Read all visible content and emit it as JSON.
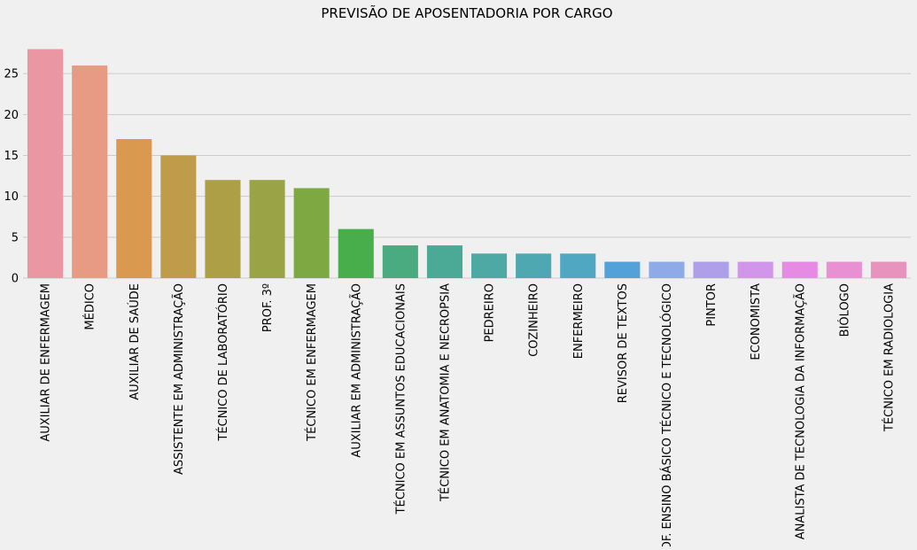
{
  "chart_data": {
    "type": "bar",
    "title": "PREVISÃO DE APOSENTADORIA POR CARGO",
    "xlabel": "",
    "ylabel": "",
    "ylim": [
      0,
      30
    ],
    "yticks": [
      0,
      5,
      10,
      15,
      20,
      25
    ],
    "grid": "horizontal",
    "legend": "none",
    "categories": [
      "AUXILIAR DE ENFERMAGEM",
      "MÉDICO",
      "AUXILIAR DE SAÚDE",
      "ASSISTENTE EM ADMINISTRAÇÃO",
      "TÉCNICO DE LABORATÓRIO",
      "PROF. 3º",
      "TÉCNICO EM ENFERMAGEM",
      "AUXILIAR EM ADMINISTRAÇÃO",
      "TÉCNICO EM ASSUNTOS EDUCACIONAIS",
      "TÉCNICO EM ANATOMIA E NECROPSIA",
      "PEDREIRO",
      "COZINHEIRO",
      "ENFERMEIRO",
      "REVISOR DE TEXTOS",
      "PROF. ENSINO BÁSICO TÉCNICO E TECNOLÓGICO",
      "PINTOR",
      "ECONOMISTA",
      "ANALISTA DE TECNOLOGIA DA INFORMAÇÃO",
      "BIÓLOGO",
      "TÉCNICO EM RADIOLOGIA"
    ],
    "values": [
      28,
      26,
      17,
      15,
      12,
      12,
      11,
      6,
      4,
      4,
      3,
      3,
      3,
      2,
      2,
      2,
      2,
      2,
      2,
      2
    ],
    "colors": [
      "#ea96a3",
      "#e79b83",
      "#d99a4f",
      "#be9c4a",
      "#ac9f45",
      "#9aa446",
      "#7ea942",
      "#48ae4c",
      "#4bab80",
      "#4baa95",
      "#4ca9a4",
      "#4ea8b1",
      "#4fa7c1",
      "#52a2d9",
      "#8eabe8",
      "#ae9fea",
      "#d196ea",
      "#e68be4",
      "#e890d1",
      "#e893bd"
    ]
  }
}
